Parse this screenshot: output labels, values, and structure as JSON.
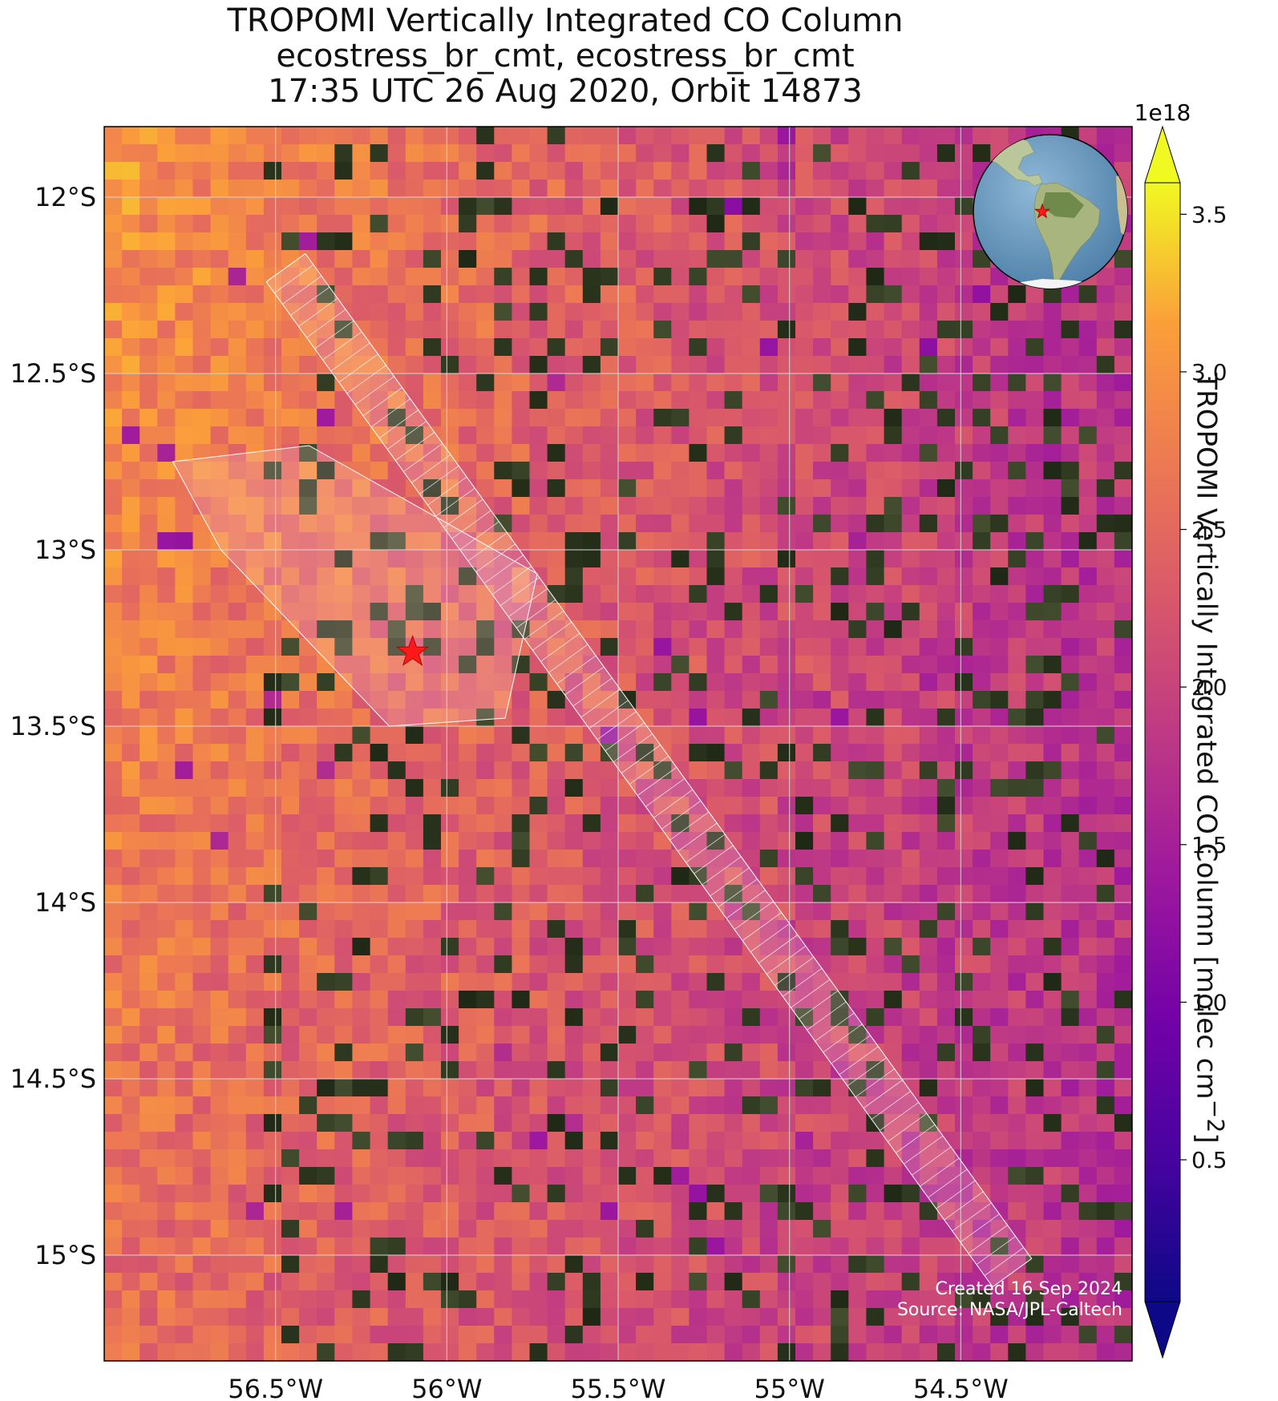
{
  "title": {
    "line1": "TROPOMI Vertically Integrated CO Column",
    "line2": "ecostress_br_cmt, ecostress_br_cmt",
    "line3": "17:35 UTC 26 Aug 2020, Orbit 14873"
  },
  "map": {
    "lon_range": [
      -57.0,
      -54.0
    ],
    "lat_range": [
      -15.3,
      -11.8
    ],
    "lon_ticks": [
      {
        "value": -56.5,
        "label": "56.5°W"
      },
      {
        "value": -56.0,
        "label": "56°W"
      },
      {
        "value": -55.5,
        "label": "55.5°W"
      },
      {
        "value": -55.0,
        "label": "55°W"
      },
      {
        "value": -54.5,
        "label": "54.5°W"
      }
    ],
    "lat_ticks": [
      {
        "value": -12.0,
        "label": "12°S"
      },
      {
        "value": -12.5,
        "label": "12.5°S"
      },
      {
        "value": -13.0,
        "label": "13°S"
      },
      {
        "value": -13.5,
        "label": "13.5°S"
      },
      {
        "value": -14.0,
        "label": "14°S"
      },
      {
        "value": -14.5,
        "label": "14.5°S"
      },
      {
        "value": -15.0,
        "label": "15°S"
      }
    ],
    "gridlines": true,
    "target_site": {
      "lon": -56.1,
      "lat": -13.29,
      "marker": "red-star"
    },
    "swath_track": {
      "start": {
        "lon": -56.47,
        "lat": -12.2
      },
      "end": {
        "lon": -54.35,
        "lat": -15.05
      }
    },
    "plume_fan": {
      "lon_min": -56.8,
      "lon_max": -55.9,
      "lat_min": -12.75,
      "lat_max": -13.5
    }
  },
  "colorbar": {
    "label": "TROPOMI Vertically Integrated CO Column [molec cm",
    "label_superscript": "−2",
    "label_close": "]",
    "multiplier": "1e18",
    "range": [
      0.05,
      3.6
    ],
    "ticks": [
      "0.5",
      "1.0",
      "1.5",
      "2.0",
      "2.5",
      "3.0",
      "3.5"
    ],
    "colormap": "plasma",
    "extend": "both"
  },
  "inset": {
    "name": "globe",
    "marker": "red-star",
    "highlight": "South America"
  },
  "credits": {
    "created": "Created 16 Sep 2024",
    "source": "Source: NASA/JPL-Caltech"
  },
  "colors": {
    "high": "#f9e52c",
    "mid": "#e77a4c",
    "low": "#0d0887",
    "dark_land": "#27301f",
    "star": "#ff1a1a"
  }
}
